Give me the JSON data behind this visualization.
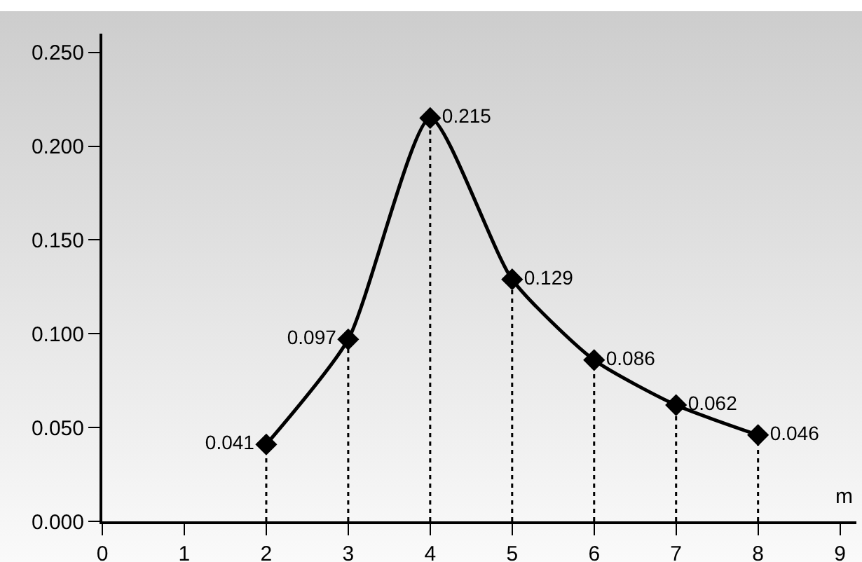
{
  "chart_data": {
    "type": "line",
    "xlabel": "m",
    "x": [
      2,
      3,
      4,
      5,
      6,
      7,
      8
    ],
    "series": [
      {
        "color": "#000000",
        "values": [
          0.041,
          0.097,
          0.215,
          0.129,
          0.086,
          0.062,
          0.046
        ]
      }
    ],
    "data_labels": true,
    "marker": "diamond",
    "line_style": "solid",
    "xlim": [
      0,
      9.2
    ],
    "xticks": [
      0,
      1,
      2,
      3,
      4,
      5,
      6,
      7,
      8,
      9
    ],
    "ylim": [
      0,
      0.26
    ],
    "yticks": [
      {
        "value": 0,
        "label": "0.000"
      },
      {
        "value": 0.05,
        "label": "0.050"
      },
      {
        "value": 0.1,
        "label": "0.100"
      },
      {
        "value": 0.15,
        "label": "0.150"
      },
      {
        "value": 0.2,
        "label": "0.200"
      },
      {
        "value": 0.25,
        "label": "0.250"
      }
    ]
  }
}
